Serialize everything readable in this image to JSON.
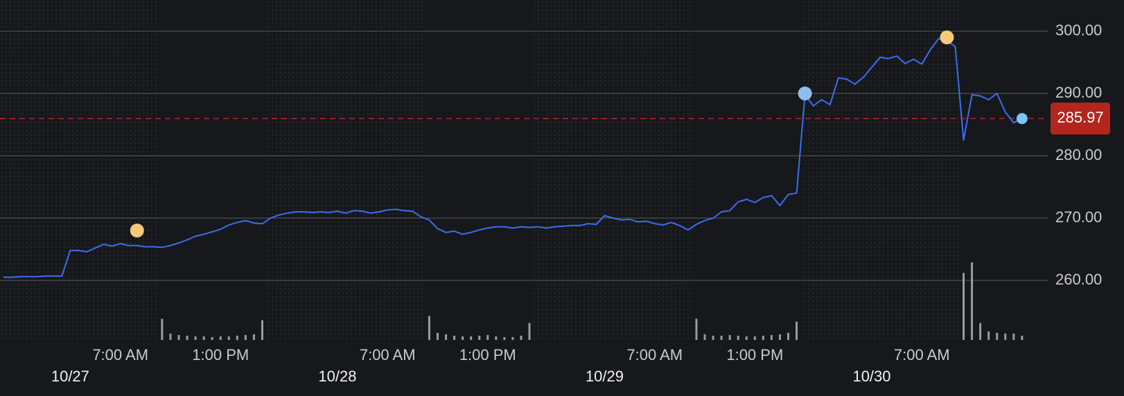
{
  "chart_data": {
    "type": "line",
    "color": "#3b6ff0",
    "values": [
      260.5,
      260.5,
      260.6,
      260.6,
      260.6,
      260.7,
      260.7,
      260.7,
      264.8,
      264.8,
      264.6,
      265.2,
      265.8,
      265.5,
      265.9,
      265.6,
      265.6,
      265.4,
      265.4,
      265.3,
      265.6,
      266.0,
      266.5,
      267.1,
      267.4,
      267.8,
      268.2,
      268.9,
      269.3,
      269.6,
      269.2,
      269.1,
      270.0,
      270.5,
      270.8,
      271.0,
      271.0,
      270.9,
      271.0,
      270.9,
      271.1,
      270.8,
      271.2,
      271.1,
      270.8,
      271.0,
      271.3,
      271.4,
      271.2,
      271.1,
      270.2,
      269.7,
      268.3,
      267.7,
      267.9,
      267.4,
      267.7,
      268.1,
      268.4,
      268.6,
      268.6,
      268.4,
      268.6,
      268.5,
      268.6,
      268.4,
      268.6,
      268.7,
      268.8,
      268.8,
      269.1,
      269.0,
      270.4,
      270.0,
      269.7,
      269.8,
      269.4,
      269.5,
      269.1,
      268.9,
      269.3,
      268.8,
      268.1,
      269.0,
      269.6,
      270.0,
      271.0,
      271.2,
      272.6,
      273.0,
      272.5,
      273.3,
      273.6,
      272.0,
      273.8,
      274.0,
      289.8,
      288.0,
      289.0,
      288.2,
      292.5,
      292.3,
      291.5,
      292.6,
      294.2,
      295.8,
      295.6,
      296.0,
      294.8,
      295.5,
      294.7,
      297.0,
      298.8,
      298.5,
      297.5,
      282.5,
      289.8,
      289.6,
      289.0,
      290.0,
      287.0,
      285.3,
      285.97
    ],
    "volume": [
      null,
      null,
      null,
      null,
      null,
      null,
      null,
      null,
      null,
      null,
      null,
      null,
      null,
      null,
      null,
      null,
      null,
      null,
      null,
      30,
      9,
      7,
      6,
      5,
      5,
      4,
      5,
      5,
      6,
      7,
      8,
      28,
      null,
      null,
      null,
      null,
      null,
      null,
      null,
      null,
      null,
      null,
      null,
      null,
      null,
      null,
      null,
      null,
      null,
      null,
      null,
      34,
      10,
      8,
      6,
      5,
      5,
      6,
      7,
      5,
      4,
      4,
      6,
      24,
      null,
      null,
      null,
      null,
      null,
      null,
      null,
      null,
      null,
      null,
      null,
      null,
      null,
      null,
      null,
      null,
      null,
      null,
      null,
      30,
      8,
      6,
      6,
      7,
      6,
      5,
      5,
      6,
      7,
      8,
      10,
      26,
      null,
      null,
      null,
      null,
      null,
      null,
      null,
      null,
      null,
      null,
      null,
      null,
      null,
      null,
      null,
      null,
      null,
      null,
      null,
      95,
      110,
      24,
      12,
      10,
      9,
      9,
      6
    ],
    "volume_color": "#9a9ca0",
    "markers": [
      {
        "x": 16,
        "value": 268.0,
        "color": "#f5c97a"
      },
      {
        "x": 96,
        "value": 290.0,
        "color": "#8fbdec"
      },
      {
        "x": 113,
        "value": 299.0,
        "color": "#f5c97a"
      },
      {
        "x": 122,
        "value": 285.97,
        "color": "#7cc3f8"
      }
    ],
    "current_price": {
      "value": 285.97,
      "label": "285.97",
      "color": "#b3261e"
    },
    "xlim": [
      0,
      125
    ],
    "ylim": [
      250,
      305
    ],
    "yticks": [
      {
        "value": 260,
        "label": "260.00"
      },
      {
        "value": 270,
        "label": "270.00"
      },
      {
        "value": 280,
        "label": "280.00"
      },
      {
        "value": 290,
        "label": "290.00"
      },
      {
        "value": 300,
        "label": "300.00"
      }
    ],
    "xticks": [
      {
        "value": 14,
        "label": "7:00 AM"
      },
      {
        "value": 26,
        "label": "1:00 PM"
      },
      {
        "value": 46,
        "label": "7:00 AM"
      },
      {
        "value": 58,
        "label": "1:00 PM"
      },
      {
        "value": 78,
        "label": "7:00 AM"
      },
      {
        "value": 90,
        "label": "1:00 PM"
      },
      {
        "value": 110,
        "label": "7:00 AM"
      }
    ],
    "date_ticks": [
      {
        "value": 8,
        "label": "10/27"
      },
      {
        "value": 40,
        "label": "10/28"
      },
      {
        "value": 72,
        "label": "10/29"
      },
      {
        "value": 104,
        "label": "10/30"
      }
    ],
    "grid": true
  }
}
